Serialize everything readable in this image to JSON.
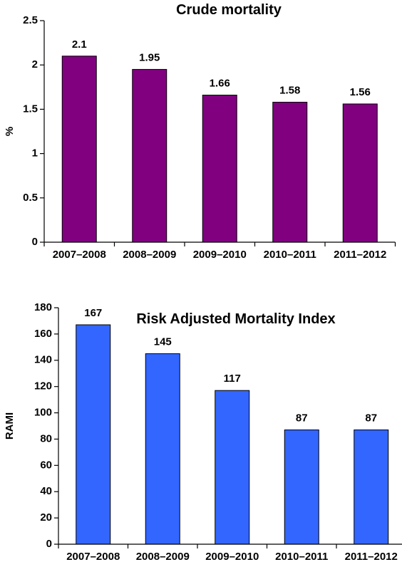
{
  "chart_data": [
    {
      "type": "bar",
      "title": "Crude mortality",
      "xlabel": "",
      "ylabel": "%",
      "ylim": [
        0,
        2.5
      ],
      "yticks": [
        "0",
        "0.5",
        "1",
        "1.5",
        "2",
        "2.5"
      ],
      "categories": [
        "2007–2008",
        "2008–2009",
        "2009–2010",
        "2010–2011",
        "2011–2012"
      ],
      "values": [
        2.1,
        1.95,
        1.66,
        1.58,
        1.56
      ],
      "value_labels": [
        "2.1",
        "1.95",
        "1.66",
        "1.58",
        "1.56"
      ],
      "bar_color": "#800080",
      "grid": false,
      "legend": "none"
    },
    {
      "type": "bar",
      "title": "Risk Adjusted Mortality Index",
      "xlabel": "",
      "ylabel": "RAMI",
      "ylim": [
        0,
        180
      ],
      "yticks": [
        "0",
        "20",
        "40",
        "60",
        "80",
        "100",
        "120",
        "140",
        "160",
        "180"
      ],
      "categories": [
        "2007–2008",
        "2008–2009",
        "2009–2010",
        "2010–2011",
        "2011–2012"
      ],
      "values": [
        167,
        145,
        117,
        87,
        87
      ],
      "value_labels": [
        "167",
        "145",
        "117",
        "87",
        "87"
      ],
      "bar_color": "#3366ff",
      "grid": false,
      "legend": "none"
    }
  ]
}
